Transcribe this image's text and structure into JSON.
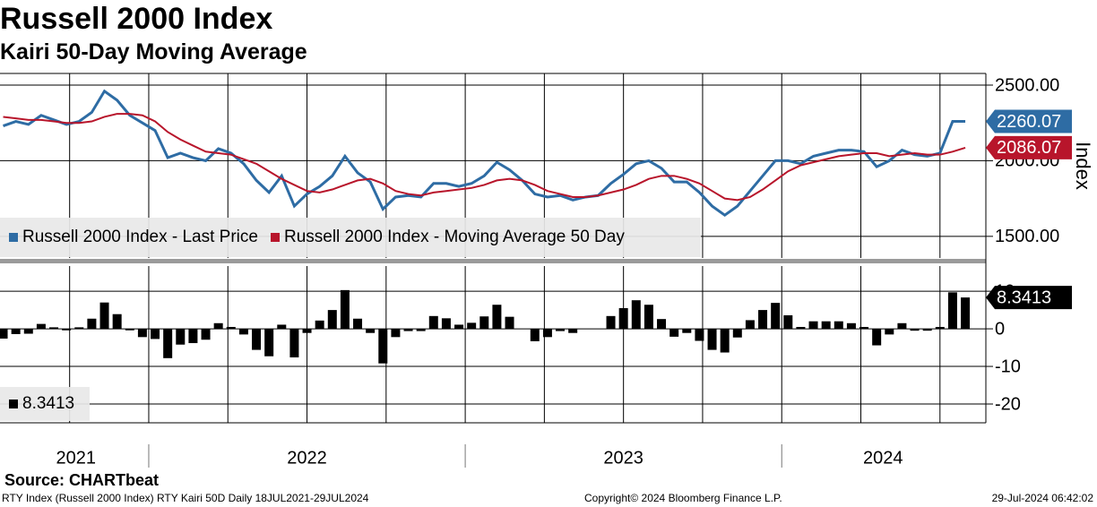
{
  "header": {
    "title": "Russell 2000 Index",
    "subtitle": "Kairi 50-Day Moving Average"
  },
  "chart_data": [
    {
      "type": "line",
      "ylabel": "Index",
      "legend": "lower left",
      "grid": true,
      "x": [
        2021.54,
        2021.58,
        2021.62,
        2021.66,
        2021.7,
        2021.74,
        2021.78,
        2021.82,
        2021.86,
        2021.9,
        2021.94,
        2021.98,
        2022.02,
        2022.06,
        2022.1,
        2022.14,
        2022.18,
        2022.22,
        2022.26,
        2022.3,
        2022.34,
        2022.38,
        2022.42,
        2022.46,
        2022.5,
        2022.54,
        2022.58,
        2022.62,
        2022.66,
        2022.7,
        2022.74,
        2022.78,
        2022.82,
        2022.86,
        2022.9,
        2022.94,
        2022.98,
        2023.02,
        2023.06,
        2023.1,
        2023.14,
        2023.18,
        2023.22,
        2023.26,
        2023.3,
        2023.34,
        2023.38,
        2023.42,
        2023.46,
        2023.5,
        2023.54,
        2023.58,
        2023.62,
        2023.66,
        2023.7,
        2023.74,
        2023.78,
        2023.82,
        2023.86,
        2023.9,
        2023.94,
        2023.98,
        2024.02,
        2024.06,
        2024.1,
        2024.14,
        2024.18,
        2024.22,
        2024.26,
        2024.3,
        2024.34,
        2024.38,
        2024.42,
        2024.46,
        2024.5,
        2024.54,
        2024.58
      ],
      "xlim": [
        2021.53,
        2024.645
      ],
      "ylim": [
        1357,
        2577
      ],
      "yticks": [
        {
          "value": 1500,
          "label": "1500.00"
        },
        {
          "value": 2000,
          "label": "2000.00"
        },
        {
          "value": 2500,
          "label": "2500.00"
        }
      ],
      "minor_xticks": [
        2021.75,
        2022,
        2022.25,
        2022.5,
        2022.75,
        2023,
        2023.25,
        2023.5,
        2023.75,
        2024,
        2024.25,
        2024.5
      ],
      "series": [
        {
          "name": "Russell 2000 Index - Last Price",
          "color": "#2e6ca4",
          "values": [
            2230,
            2260,
            2240,
            2300,
            2270,
            2240,
            2260,
            2320,
            2460,
            2400,
            2300,
            2250,
            2200,
            2020,
            2050,
            2020,
            2000,
            2080,
            2050,
            1980,
            1870,
            1790,
            1900,
            1700,
            1780,
            1830,
            1900,
            2030,
            1920,
            1860,
            1680,
            1760,
            1770,
            1760,
            1850,
            1850,
            1830,
            1850,
            1900,
            1990,
            1940,
            1870,
            1780,
            1760,
            1770,
            1740,
            1760,
            1770,
            1850,
            1910,
            1980,
            2000,
            1950,
            1860,
            1860,
            1790,
            1700,
            1640,
            1700,
            1800,
            1900,
            2000,
            2000,
            1980,
            2030,
            2050,
            2070,
            2070,
            2060,
            1960,
            2000,
            2070,
            2040,
            2030,
            2050,
            2260,
            2260.07
          ]
        },
        {
          "name": "Russell 2000 Index - Moving Average 50 Day",
          "color": "#b8152b",
          "values": [
            2290,
            2280,
            2270,
            2270,
            2260,
            2250,
            2250,
            2260,
            2290,
            2310,
            2310,
            2300,
            2260,
            2190,
            2140,
            2100,
            2060,
            2050,
            2040,
            2010,
            1980,
            1930,
            1880,
            1840,
            1800,
            1790,
            1810,
            1840,
            1870,
            1880,
            1850,
            1800,
            1780,
            1770,
            1790,
            1800,
            1810,
            1820,
            1840,
            1870,
            1880,
            1870,
            1840,
            1800,
            1780,
            1760,
            1760,
            1770,
            1790,
            1810,
            1840,
            1880,
            1900,
            1900,
            1880,
            1850,
            1800,
            1750,
            1740,
            1760,
            1810,
            1870,
            1930,
            1970,
            1990,
            2010,
            2030,
            2040,
            2050,
            2050,
            2030,
            2040,
            2050,
            2040,
            2040,
            2060,
            2086.07
          ]
        }
      ]
    },
    {
      "type": "bar",
      "legend": "lower left",
      "grid": true,
      "color": "#000000",
      "x": [
        2021.54,
        2021.58,
        2021.62,
        2021.66,
        2021.7,
        2021.74,
        2021.78,
        2021.82,
        2021.86,
        2021.9,
        2021.94,
        2021.98,
        2022.02,
        2022.06,
        2022.1,
        2022.14,
        2022.18,
        2022.22,
        2022.26,
        2022.3,
        2022.34,
        2022.38,
        2022.42,
        2022.46,
        2022.5,
        2022.54,
        2022.58,
        2022.62,
        2022.66,
        2022.7,
        2022.74,
        2022.78,
        2022.82,
        2022.86,
        2022.9,
        2022.94,
        2022.98,
        2023.02,
        2023.06,
        2023.1,
        2023.14,
        2023.18,
        2023.22,
        2023.26,
        2023.3,
        2023.34,
        2023.38,
        2023.42,
        2023.46,
        2023.5,
        2023.54,
        2023.58,
        2023.62,
        2023.66,
        2023.7,
        2023.74,
        2023.78,
        2023.82,
        2023.86,
        2023.9,
        2023.94,
        2023.98,
        2024.02,
        2024.06,
        2024.1,
        2024.14,
        2024.18,
        2024.22,
        2024.26,
        2024.3,
        2024.34,
        2024.38,
        2024.42,
        2024.46,
        2024.5,
        2024.54,
        2024.58
      ],
      "values": [
        -2.6,
        -1.4,
        -1.3,
        1.3,
        0.4,
        -0.4,
        0.4,
        2.7,
        7.0,
        3.9,
        -0.4,
        -2.2,
        -2.7,
        -7.8,
        -4.2,
        -3.8,
        -2.9,
        1.5,
        0.5,
        -1.5,
        -5.6,
        -7.3,
        1.1,
        -7.6,
        -1.1,
        2.2,
        5.0,
        10.3,
        2.7,
        -1.1,
        -9.2,
        -2.2,
        -0.6,
        -0.6,
        3.4,
        2.8,
        1.1,
        1.6,
        3.3,
        6.4,
        3.2,
        0.0,
        -3.3,
        -2.2,
        -0.6,
        -1.1,
        0.0,
        0.0,
        3.4,
        5.5,
        7.6,
        6.4,
        2.6,
        -2.1,
        -1.1,
        -3.2,
        -5.6,
        -6.3,
        -2.3,
        2.3,
        5.0,
        6.9,
        3.6,
        0.5,
        2.0,
        2.0,
        2.0,
        1.5,
        0.5,
        -4.4,
        -1.5,
        1.5,
        -0.5,
        -0.5,
        0.5,
        9.7,
        8.3413
      ],
      "xlim": [
        2021.53,
        2024.645
      ],
      "ylim": [
        -25,
        16.7
      ],
      "yticks": [
        -20,
        -10,
        0,
        10
      ],
      "minor_xticks": [
        2021.75,
        2022,
        2022.25,
        2022.5,
        2022.75,
        2023,
        2023.25,
        2023.5,
        2023.75,
        2024,
        2024.25,
        2024.5
      ],
      "xticks": [
        {
          "value": 2021.77,
          "label": "2021"
        },
        {
          "value": 2022.5,
          "label": "2022"
        },
        {
          "value": 2023.5,
          "label": "2023"
        },
        {
          "value": 2024.32,
          "label": "2024"
        }
      ],
      "xseparators": [
        2022,
        2023,
        2024
      ]
    }
  ],
  "footer": {
    "source": "Source: CHARTbeat",
    "info": "RTY Index (Russell 2000 Index) RTY Kairi 50D  Daily 18JUL2021-29JUL2024",
    "copyright": "Copyright© 2024 Bloomberg Finance L.P.",
    "timestamp": "29-Jul-2024 06:42:02"
  }
}
